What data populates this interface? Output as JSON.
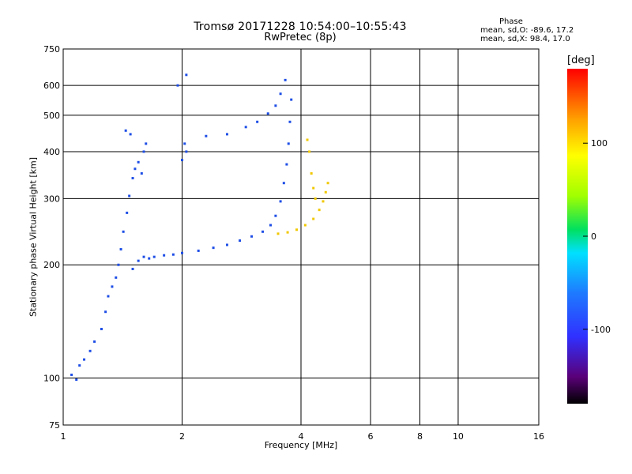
{
  "header": {
    "title_line_1": "Tromsø 20171228 10:54:00–10:55:43",
    "title_line_2": "RwPretec (8p)",
    "phase_title": "Phase",
    "phase_o": "mean, sd,O: -89.6, 17.2",
    "phase_x": "mean, sd,X:  98.4, 17.0"
  },
  "colorbar": {
    "label": "[deg]",
    "range": [
      -180,
      180
    ],
    "ticks": [
      100,
      0,
      -100
    ],
    "tick_labels": [
      "100",
      "0",
      "-100"
    ]
  },
  "colors": {
    "axes": "#000000",
    "o_mode": "#1e4ee6",
    "x_mode": "#f0c800"
  },
  "chart_data": {
    "type": "scatter",
    "title": "Tromsø 20171228 10:54:00–10:55:43",
    "subtitle": "RwPretec (8p)",
    "xlabel": "Frequency [MHz]",
    "ylabel": "Stationary phase Virtual Height [km]",
    "x_scale": "log",
    "y_scale": "log",
    "xlim": [
      1,
      16
    ],
    "ylim": [
      75,
      750
    ],
    "x_ticks": [
      1,
      2,
      4,
      6,
      8,
      10,
      16
    ],
    "x_tick_labels": [
      "1",
      "2",
      "4",
      "6",
      "8",
      "10",
      "16"
    ],
    "y_ticks": [
      75,
      100,
      200,
      300,
      400,
      500,
      600,
      750
    ],
    "y_tick_labels": [
      "75",
      "100",
      "200",
      "300",
      "400",
      "500",
      "600",
      "750"
    ],
    "grid": true,
    "color_variable": "Phase [deg]",
    "series": [
      {
        "name": "",
        "color": "#1e4ee6",
        "points": [
          {
            "x": 1.05,
            "y": 102
          },
          {
            "x": 1.08,
            "y": 99
          },
          {
            "x": 1.1,
            "y": 108
          },
          {
            "x": 1.13,
            "y": 112
          },
          {
            "x": 1.17,
            "y": 118
          },
          {
            "x": 1.2,
            "y": 125
          },
          {
            "x": 1.25,
            "y": 135
          },
          {
            "x": 1.28,
            "y": 150
          },
          {
            "x": 1.3,
            "y": 165
          },
          {
            "x": 1.33,
            "y": 175
          },
          {
            "x": 1.36,
            "y": 185
          },
          {
            "x": 1.38,
            "y": 200
          },
          {
            "x": 1.4,
            "y": 220
          },
          {
            "x": 1.42,
            "y": 245
          },
          {
            "x": 1.45,
            "y": 275
          },
          {
            "x": 1.47,
            "y": 305
          },
          {
            "x": 1.5,
            "y": 340
          },
          {
            "x": 1.52,
            "y": 360
          },
          {
            "x": 1.55,
            "y": 375
          },
          {
            "x": 1.58,
            "y": 350
          },
          {
            "x": 1.6,
            "y": 400
          },
          {
            "x": 1.62,
            "y": 420
          },
          {
            "x": 1.48,
            "y": 445
          },
          {
            "x": 1.44,
            "y": 455
          },
          {
            "x": 1.5,
            "y": 195
          },
          {
            "x": 1.55,
            "y": 205
          },
          {
            "x": 1.6,
            "y": 210
          },
          {
            "x": 1.65,
            "y": 208
          },
          {
            "x": 1.7,
            "y": 210
          },
          {
            "x": 1.8,
            "y": 212
          },
          {
            "x": 1.9,
            "y": 213
          },
          {
            "x": 2.0,
            "y": 215
          },
          {
            "x": 2.2,
            "y": 218
          },
          {
            "x": 2.4,
            "y": 222
          },
          {
            "x": 2.6,
            "y": 226
          },
          {
            "x": 2.8,
            "y": 232
          },
          {
            "x": 3.0,
            "y": 238
          },
          {
            "x": 3.2,
            "y": 245
          },
          {
            "x": 3.35,
            "y": 255
          },
          {
            "x": 3.45,
            "y": 270
          },
          {
            "x": 3.55,
            "y": 295
          },
          {
            "x": 3.62,
            "y": 330
          },
          {
            "x": 3.68,
            "y": 370
          },
          {
            "x": 3.72,
            "y": 420
          },
          {
            "x": 3.75,
            "y": 480
          },
          {
            "x": 3.78,
            "y": 550
          },
          {
            "x": 2.0,
            "y": 380
          },
          {
            "x": 2.03,
            "y": 420
          },
          {
            "x": 2.05,
            "y": 400
          },
          {
            "x": 2.3,
            "y": 440
          },
          {
            "x": 2.6,
            "y": 445
          },
          {
            "x": 2.9,
            "y": 465
          },
          {
            "x": 3.1,
            "y": 480
          },
          {
            "x": 3.3,
            "y": 505
          },
          {
            "x": 3.45,
            "y": 530
          },
          {
            "x": 3.55,
            "y": 570
          },
          {
            "x": 3.65,
            "y": 620
          },
          {
            "x": 1.95,
            "y": 600
          },
          {
            "x": 2.05,
            "y": 640
          }
        ]
      },
      {
        "name": "",
        "color": "#f0c800",
        "points": [
          {
            "x": 3.5,
            "y": 242
          },
          {
            "x": 3.7,
            "y": 244
          },
          {
            "x": 3.9,
            "y": 248
          },
          {
            "x": 4.1,
            "y": 255
          },
          {
            "x": 4.3,
            "y": 265
          },
          {
            "x": 4.45,
            "y": 280
          },
          {
            "x": 4.55,
            "y": 295
          },
          {
            "x": 4.62,
            "y": 312
          },
          {
            "x": 4.68,
            "y": 330
          },
          {
            "x": 4.2,
            "y": 400
          },
          {
            "x": 4.25,
            "y": 350
          },
          {
            "x": 4.3,
            "y": 320
          },
          {
            "x": 4.35,
            "y": 300
          },
          {
            "x": 4.15,
            "y": 430
          }
        ]
      }
    ]
  }
}
